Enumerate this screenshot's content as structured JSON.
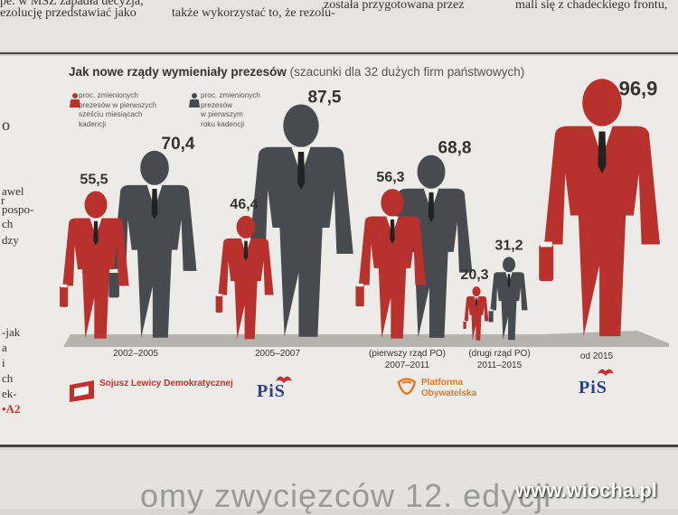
{
  "header": {
    "col1": "pe. w MSZ zapadła decyzja,",
    "col1b": "ezolucję przedstawiać jako",
    "col2": "także wykorzystać to, że rezolu-",
    "col3": "została przygotowana przez",
    "col4": "mali się z chadeckiego frontu,"
  },
  "sidebar": {
    "lines": [
      "o",
      "awel",
      "r",
      "pospo-",
      "ch",
      "dzy",
      "-jak",
      "a",
      "i",
      "ch",
      "ek-",
      "A2"
    ]
  },
  "title": {
    "bold": "Jak nowe rządy wymieniały prezesów",
    "rest": "(szacunki dla 32 dużych firm państwowych)"
  },
  "legend": {
    "red": [
      "proc. zmienionych",
      "prezesów w pierwszych",
      "sześciu miesiącach",
      "kadencji"
    ],
    "gray": [
      "proc. zmienionych",
      "prezesów",
      "w pierwszym",
      "roku kadencji"
    ]
  },
  "colors": {
    "red": "#b8312c",
    "gray": "#474b4f",
    "floor": "#b5b3ac"
  },
  "chart_data": {
    "type": "bar",
    "title": "Jak nowe rządy wymieniały prezesów",
    "subtitle": "(szacunki dla 32 dużych firm państwowych)",
    "categories": [
      "2002–2005",
      "2005–2007",
      "2007–2011",
      "2011–2015",
      "od 2015"
    ],
    "category_notes": [
      "",
      "",
      "(pierwszy rząd PO)",
      "(drugi rząd PO)",
      ""
    ],
    "series": [
      {
        "name": "proc. zmienionych prezesów w pierwszych sześciu miesiącach kadencji",
        "values": [
          55.5,
          46.4,
          56.3,
          20.3,
          96.9
        ]
      },
      {
        "name": "proc. zmienionych prezesów w pierwszym roku kadencji",
        "values": [
          70.4,
          87.5,
          68.8,
          31.2,
          null
        ]
      }
    ],
    "value_labels": [
      [
        "55,5",
        "70,4"
      ],
      [
        "46,4",
        "87,5"
      ],
      [
        "56,3",
        "68,8"
      ],
      [
        "20,3",
        "31,2"
      ],
      [
        "96,9"
      ]
    ],
    "parties": [
      "Sojusz Lewicy Demokratycznej",
      "PiS",
      "Platforma Obywatelska",
      "PiS"
    ],
    "ylim": [
      0,
      100
    ]
  },
  "bottom": {
    "text": "omy zwycięzców 12. edycji"
  },
  "watermark": "www.wiocha.pl"
}
